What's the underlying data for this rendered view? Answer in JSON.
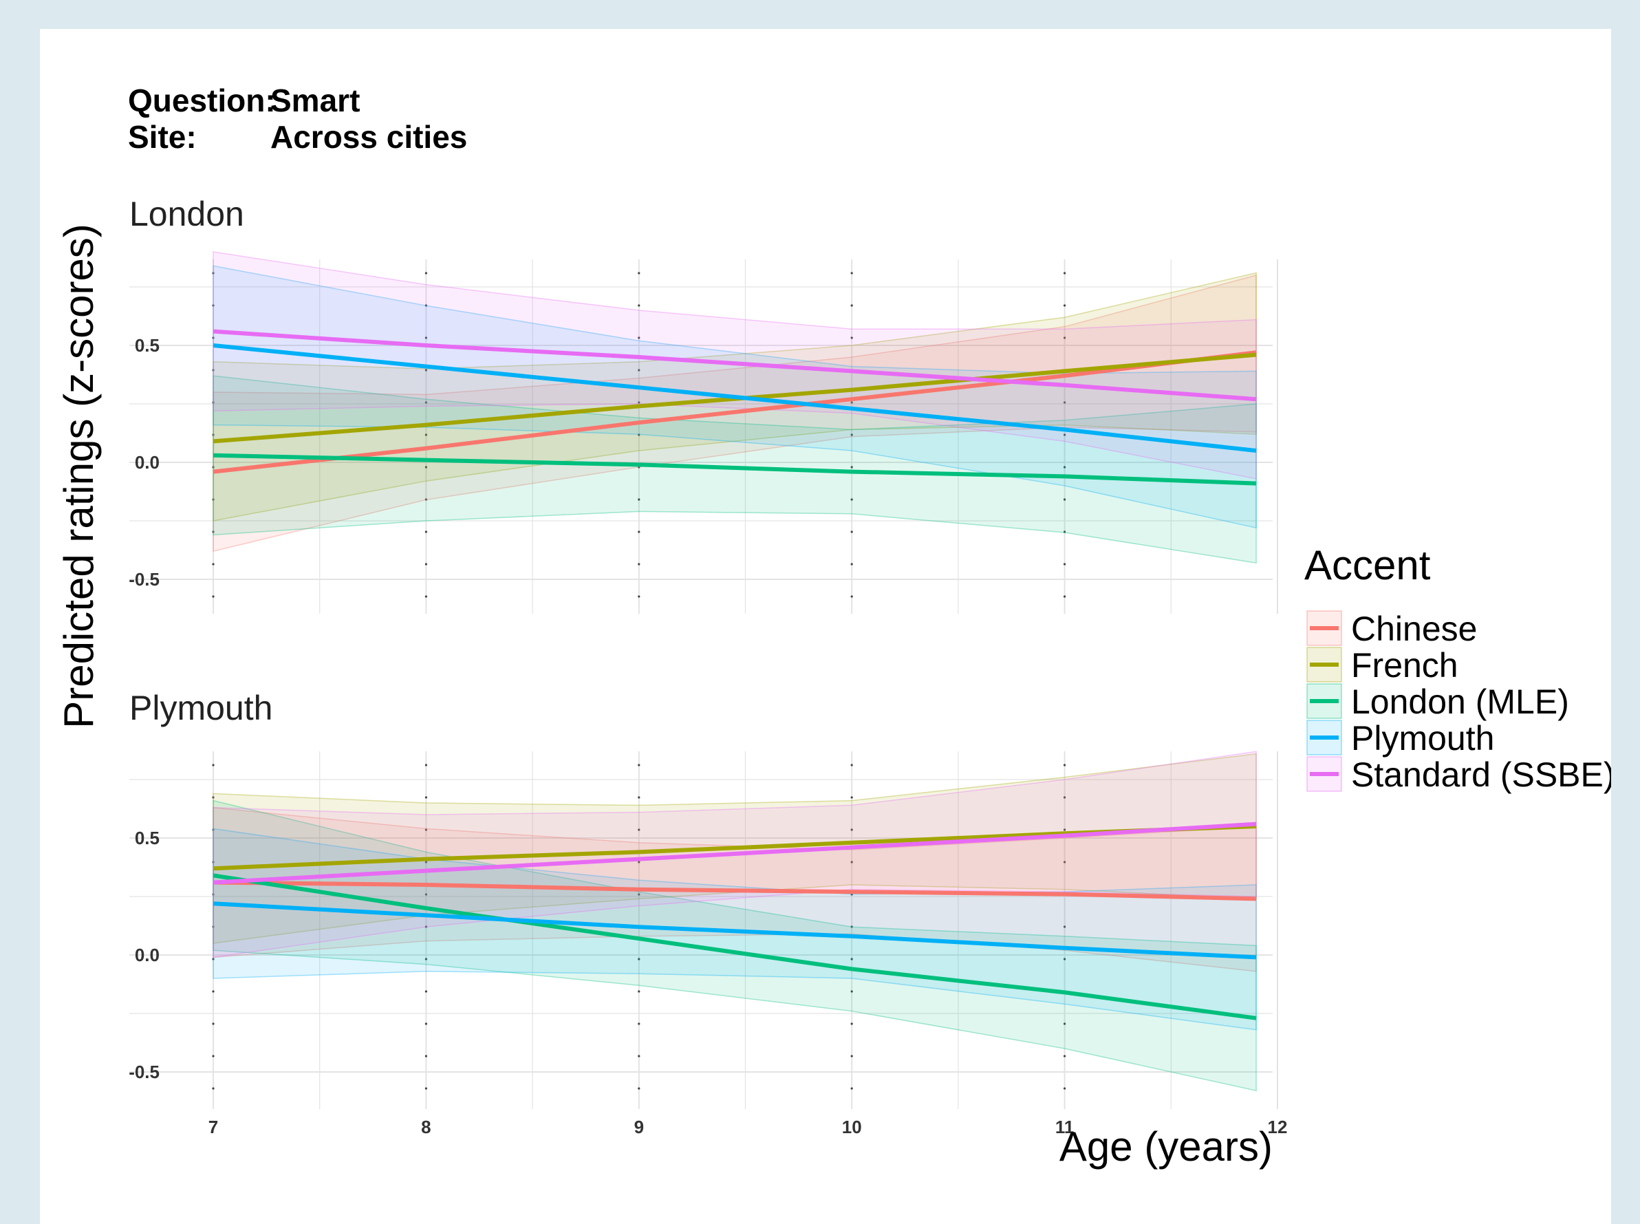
{
  "header": {
    "question_label": "Question:",
    "question_value": "Smart",
    "site_label": "Site:",
    "site_value": "Across cities"
  },
  "chart_data": {
    "type": "line",
    "xlabel": "Age (years)",
    "ylabel": "Predicted ratings (z-scores)",
    "xlim": [
      7,
      12
    ],
    "x_ticks": [
      7,
      8,
      9,
      10,
      11,
      12
    ],
    "ylim": [
      -0.65,
      1.0
    ],
    "y_ticks": [
      -0.5,
      0.0,
      0.5
    ],
    "y_tick_labels": [
      "-0.5",
      "0.0",
      "0.5"
    ],
    "grid": true,
    "legend": {
      "title": "Accent",
      "position": "right",
      "entries": [
        "Chinese",
        "French",
        "London (MLE)",
        "Plymouth",
        "Standard (SSBE)"
      ]
    },
    "colors": {
      "Chinese": "#F8766D",
      "French": "#A3A500",
      "London (MLE)": "#00BF7D",
      "Plymouth": "#00B0F6",
      "Standard (SSBE)": "#E76BF3"
    },
    "x": [
      7,
      8,
      9,
      10,
      11,
      11.9
    ],
    "panels": [
      {
        "title": "London",
        "series": [
          {
            "name": "Chinese",
            "values": [
              -0.04,
              0.06,
              0.17,
              0.27,
              0.37,
              0.47
            ],
            "lower": [
              -0.38,
              -0.16,
              -0.02,
              0.11,
              0.15,
              0.13
            ],
            "upper": [
              0.3,
              0.29,
              0.36,
              0.45,
              0.58,
              0.8
            ]
          },
          {
            "name": "French",
            "values": [
              0.09,
              0.16,
              0.24,
              0.31,
              0.39,
              0.46
            ],
            "lower": [
              -0.25,
              -0.08,
              0.05,
              0.14,
              0.16,
              0.12
            ],
            "upper": [
              0.43,
              0.4,
              0.43,
              0.5,
              0.62,
              0.81
            ]
          },
          {
            "name": "London (MLE)",
            "values": [
              0.03,
              0.01,
              -0.01,
              -0.04,
              -0.06,
              -0.09
            ],
            "lower": [
              -0.31,
              -0.25,
              -0.21,
              -0.22,
              -0.3,
              -0.43
            ],
            "upper": [
              0.37,
              0.27,
              0.19,
              0.14,
              0.18,
              0.25
            ]
          },
          {
            "name": "Plymouth",
            "values": [
              0.5,
              0.41,
              0.32,
              0.23,
              0.14,
              0.05
            ],
            "lower": [
              0.16,
              0.15,
              0.12,
              0.05,
              -0.1,
              -0.28
            ],
            "upper": [
              0.84,
              0.67,
              0.52,
              0.41,
              0.38,
              0.39
            ]
          },
          {
            "name": "Standard (SSBE)",
            "values": [
              0.56,
              0.5,
              0.45,
              0.39,
              0.33,
              0.27
            ],
            "lower": [
              0.22,
              0.24,
              0.25,
              0.21,
              0.09,
              -0.07
            ],
            "upper": [
              0.9,
              0.76,
              0.65,
              0.57,
              0.57,
              0.61
            ]
          }
        ]
      },
      {
        "title": "Plymouth",
        "series": [
          {
            "name": "Chinese",
            "values": [
              0.31,
              0.3,
              0.28,
              0.27,
              0.26,
              0.24
            ],
            "lower": [
              -0.01,
              0.06,
              0.08,
              0.09,
              0.02,
              -0.07
            ],
            "upper": [
              0.63,
              0.54,
              0.48,
              0.45,
              0.5,
              0.55
            ]
          },
          {
            "name": "French",
            "values": [
              0.37,
              0.41,
              0.44,
              0.48,
              0.52,
              0.55
            ],
            "lower": [
              0.05,
              0.17,
              0.24,
              0.3,
              0.28,
              0.24
            ],
            "upper": [
              0.69,
              0.65,
              0.64,
              0.66,
              0.76,
              0.86
            ]
          },
          {
            "name": "London (MLE)",
            "values": [
              0.34,
              0.2,
              0.07,
              -0.06,
              -0.16,
              -0.27
            ],
            "lower": [
              0.02,
              -0.04,
              -0.13,
              -0.24,
              -0.4,
              -0.58
            ],
            "upper": [
              0.66,
              0.44,
              0.27,
              0.12,
              0.08,
              0.04
            ]
          },
          {
            "name": "Plymouth",
            "values": [
              0.22,
              0.17,
              0.12,
              0.08,
              0.03,
              -0.01
            ],
            "lower": [
              -0.1,
              -0.07,
              -0.08,
              -0.1,
              -0.21,
              -0.32
            ],
            "upper": [
              0.54,
              0.41,
              0.32,
              0.26,
              0.27,
              0.3
            ]
          },
          {
            "name": "Standard (SSBE)",
            "values": [
              0.31,
              0.36,
              0.41,
              0.46,
              0.51,
              0.56
            ],
            "lower": [
              -0.01,
              0.12,
              0.21,
              0.28,
              0.27,
              0.25
            ],
            "upper": [
              0.63,
              0.6,
              0.61,
              0.64,
              0.75,
              0.87
            ]
          }
        ]
      }
    ]
  }
}
